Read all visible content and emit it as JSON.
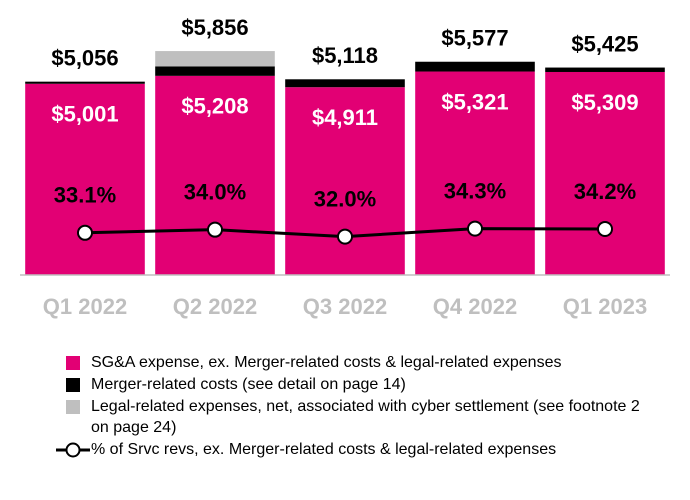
{
  "chart_data": {
    "type": "bar",
    "stacked": true,
    "categories": [
      "Q1 2022",
      "Q2 2022",
      "Q3 2022",
      "Q4 2022",
      "Q1 2023"
    ],
    "series": [
      {
        "name": "SG&A expense, ex. Merger-related costs & legal-related expenses",
        "color": "#e20074",
        "values": [
          5001,
          5208,
          4911,
          5321,
          5309
        ],
        "value_labels": [
          "$5,001",
          "$5,208",
          "$4,911",
          "$5,321",
          "$5,309"
        ]
      },
      {
        "name": "Merger-related costs (see detail on page 14)",
        "color": "#000000",
        "values": [
          55,
          248,
          207,
          256,
          116
        ]
      },
      {
        "name": "Legal-related expenses, net, associated with cyber settlement (see footnote 2 on page 24)",
        "color": "#bfbfbf",
        "values": [
          0,
          400,
          0,
          0,
          0
        ]
      },
      {
        "name": "% of Srvc revs, ex. Merger-related costs & legal-related expenses",
        "type": "line",
        "axis": "y2",
        "color": "#000000",
        "values": [
          33.1,
          34.0,
          32.0,
          34.3,
          34.2
        ],
        "value_labels": [
          "33.1%",
          "34.0%",
          "32.0%",
          "34.3%",
          "34.2%"
        ]
      }
    ],
    "totals": {
      "values": [
        5056,
        5856,
        5118,
        5577,
        5425
      ],
      "value_labels": [
        "$5,056",
        "$5,856",
        "$5,118",
        "$5,577",
        "$5,425"
      ]
    },
    "ylim": [
      0,
      6930
    ],
    "y2lim": [
      21,
      97
    ]
  }
}
